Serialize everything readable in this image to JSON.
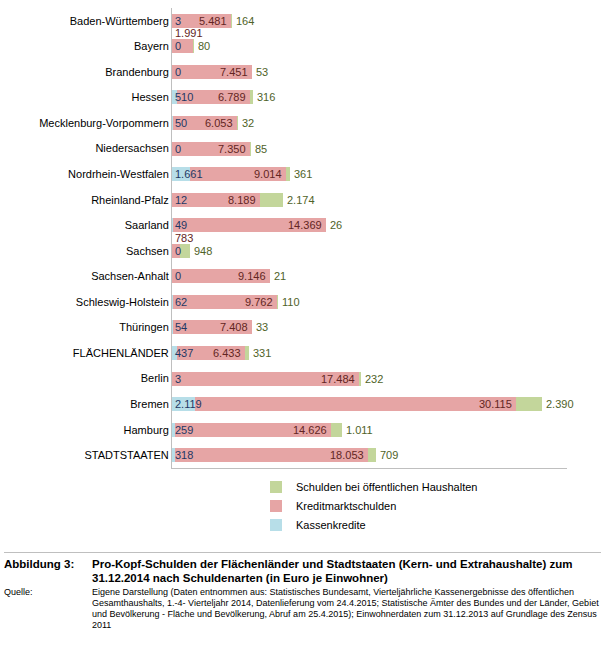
{
  "chart_data": {
    "type": "bar",
    "orientation": "horizontal",
    "stacked": true,
    "data_labels": true,
    "grid": false,
    "legend": "bottom",
    "tick_labels": "y",
    "xlim": [
      0,
      37000
    ],
    "figure_label": "Abbildung 3:",
    "title": "Pro-Kopf-Schulden der Flächenländer und Stadtstaaten (Kern- und Extrahaushalte) zum 31.12.2014 nach Schuldenarten (in Euro je Einwohner)",
    "source_label": "Quelle:",
    "source": "Eigene Darstellung (Daten entnommen aus: Statistisches Bundesamt, Vierteljährliche Kassenergebnisse des öffentlichen Gesamthaushalts, 1.-4- Vierteljahr 2014, Datenlieferung vom 24.4.2015; Statistische Ämter des Bundes und der Länder, Gebiet und Bevölkerung - Fläche und Bevölkerung, Abruf am 25.4.2015); Einwohnerdaten zum 31.12.2013 auf Grundlage des Zensus 2011",
    "categories": [
      "Baden-Württemberg",
      "Bayern",
      "Brandenburg",
      "Hessen",
      "Mecklenburg-Vorpommern",
      "Niedersachsen",
      "Nordrhein-Westfalen",
      "Rheinland-Pfalz",
      "Saarland",
      "Sachsen",
      "Sachsen-Anhalt",
      "Schleswig-Holstein",
      "Thüringen",
      "FLÄCHENLÄNDER",
      "Berlin",
      "Bremen",
      "Hamburg",
      "STADTSTAATEN"
    ],
    "series": [
      {
        "name": "Kassenkredite",
        "color": "#b7dee8",
        "values": [
          3,
          0,
          0,
          510,
          50,
          0,
          1661,
          12,
          49,
          0,
          0,
          62,
          54,
          437,
          3,
          2119,
          259,
          318
        ],
        "value_labels": [
          "3",
          "0",
          "0",
          "510",
          "50",
          "0",
          "1.661",
          "12",
          "49",
          "0",
          "0",
          "62",
          "54",
          "437",
          "3",
          "2.119",
          "259",
          "318"
        ]
      },
      {
        "name": "Kreditmarktschulden",
        "color": "#e6a5a5",
        "values": [
          5481,
          1991,
          7451,
          6789,
          6053,
          7350,
          9014,
          8189,
          14369,
          783,
          9146,
          9762,
          7408,
          6433,
          17484,
          30115,
          14626,
          18053
        ],
        "value_labels": [
          "5.481",
          "1.991",
          "7.451",
          "6.789",
          "6.053",
          "7.350",
          "9.014",
          "8.189",
          "14.369",
          "783",
          "9.146",
          "9.762",
          "7.408",
          "6.433",
          "17.484",
          "30.115",
          "14.626",
          "18.053"
        ]
      },
      {
        "name": "Schulden bei öffentlichen Haushalten",
        "color": "#c3d69b",
        "values": [
          164,
          80,
          53,
          316,
          32,
          85,
          361,
          2174,
          26,
          948,
          21,
          110,
          33,
          331,
          232,
          2390,
          1011,
          709
        ],
        "value_labels": [
          "164",
          "80",
          "53",
          "316",
          "32",
          "85",
          "361",
          "2.174",
          "26",
          "948",
          "21",
          "110",
          "33",
          "331",
          "232",
          "2.390",
          "1.011",
          "709"
        ]
      }
    ]
  }
}
